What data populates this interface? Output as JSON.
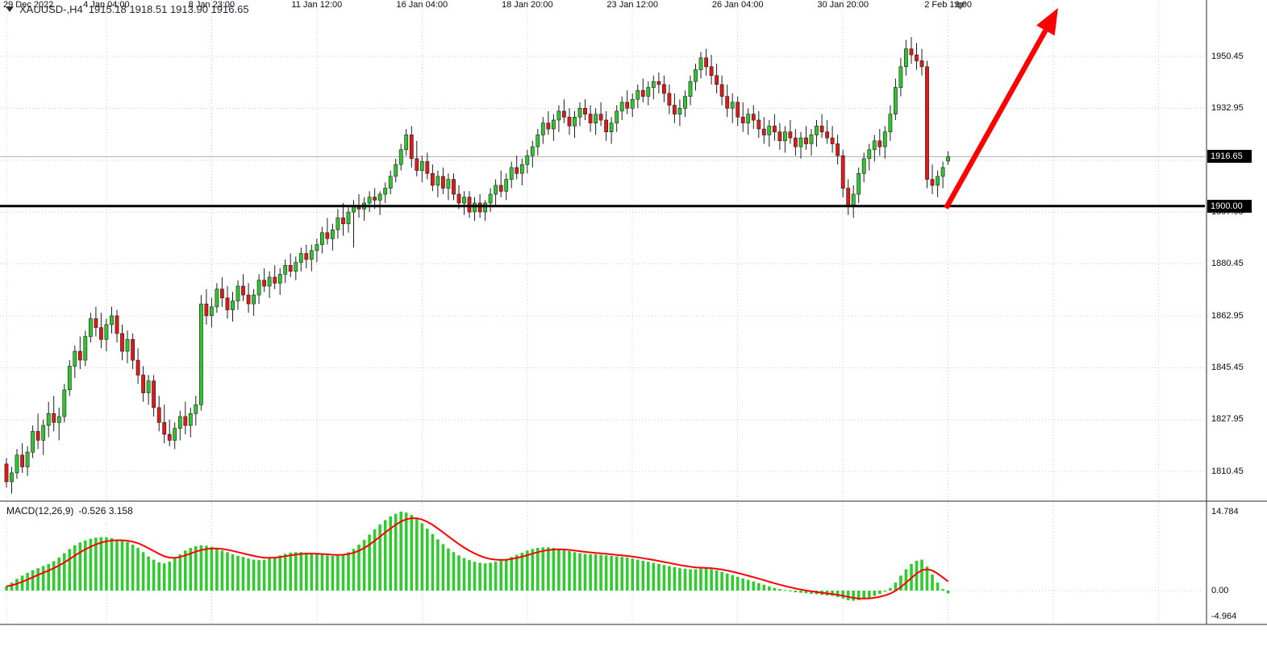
{
  "header": {
    "symbol_period": "XAUUSD-,H4",
    "ohlc_values": "1915.18 1918.51 1913.90 1916.65"
  },
  "indicator": {
    "name": "MACD(12,26,9)",
    "values": "-0.526 3.158"
  },
  "price_tags": {
    "current": "1916.65",
    "line": "1900.00"
  },
  "chart_data": {
    "type": "candlestick",
    "symbol": "XAUUSD-",
    "timeframe": "H4",
    "current_bar": {
      "open": 1915.18,
      "high": 1918.51,
      "low": 1913.9,
      "close": 1916.65
    },
    "current_price": 1916.65,
    "horizontal_line": 1900.0,
    "y_range": [
      1801.0,
      1969.5
    ],
    "grid": true,
    "y_tick_values": [
      1950.45,
      1932.95,
      1915.45,
      1897.95,
      1880.45,
      1862.95,
      1845.45,
      1827.95,
      1810.45
    ],
    "y_tick_labels": [
      "1950.45",
      "1932.95",
      "1915.45",
      "1897.95",
      "1880.45",
      "1862.95",
      "1845.45",
      "1827.95",
      "1810.45"
    ],
    "x_tick_indices": [
      0,
      19,
      39,
      59,
      79,
      99,
      119,
      139,
      159,
      179
    ],
    "x_tick_labels": [
      "29 Dec 2022",
      "4 Jan 04:00",
      "8 Jan 23:00",
      "11 Jan 12:00",
      "16 Jan 04:00",
      "18 Jan 20:00",
      "23 Jan 12:00",
      "26 Jan 04:00",
      "30 Jan 20:00",
      "2 Feb 12:00"
    ],
    "candles": [
      [
        1813,
        1815,
        1805,
        1807
      ],
      [
        1807,
        1812,
        1803,
        1810
      ],
      [
        1810,
        1818,
        1808,
        1816
      ],
      [
        1816,
        1820,
        1810,
        1812
      ],
      [
        1812,
        1819,
        1809,
        1817
      ],
      [
        1817,
        1826,
        1815,
        1824
      ],
      [
        1824,
        1830,
        1818,
        1821
      ],
      [
        1821,
        1828,
        1816,
        1826
      ],
      [
        1826,
        1834,
        1822,
        1830
      ],
      [
        1830,
        1836,
        1824,
        1827
      ],
      [
        1827,
        1832,
        1821,
        1829
      ],
      [
        1829,
        1840,
        1827,
        1838
      ],
      [
        1838,
        1848,
        1836,
        1846
      ],
      [
        1846,
        1853,
        1842,
        1851
      ],
      [
        1851,
        1856,
        1845,
        1848
      ],
      [
        1848,
        1858,
        1846,
        1856
      ],
      [
        1856,
        1864,
        1854,
        1862
      ],
      [
        1862,
        1866,
        1856,
        1859
      ],
      [
        1859,
        1864,
        1852,
        1855
      ],
      [
        1855,
        1862,
        1851,
        1860
      ],
      [
        1860,
        1866,
        1857,
        1863
      ],
      [
        1863,
        1865,
        1854,
        1857
      ],
      [
        1857,
        1860,
        1848,
        1851
      ],
      [
        1851,
        1858,
        1847,
        1855
      ],
      [
        1855,
        1857,
        1845,
        1848
      ],
      [
        1848,
        1852,
        1840,
        1843
      ],
      [
        1843,
        1846,
        1834,
        1837
      ],
      [
        1837,
        1843,
        1833,
        1841
      ],
      [
        1841,
        1843,
        1829,
        1832
      ],
      [
        1832,
        1836,
        1824,
        1827
      ],
      [
        1827,
        1833,
        1820,
        1823
      ],
      [
        1823,
        1828,
        1819,
        1821
      ],
      [
        1821,
        1827,
        1818,
        1825
      ],
      [
        1825,
        1831,
        1821,
        1829
      ],
      [
        1829,
        1834,
        1823,
        1826
      ],
      [
        1826,
        1832,
        1822,
        1830
      ],
      [
        1830,
        1836,
        1826,
        1833
      ],
      [
        1833,
        1870,
        1831,
        1867
      ],
      [
        1867,
        1872,
        1860,
        1863
      ],
      [
        1863,
        1869,
        1859,
        1866
      ],
      [
        1866,
        1874,
        1864,
        1872
      ],
      [
        1872,
        1876,
        1866,
        1869
      ],
      [
        1869,
        1873,
        1862,
        1865
      ],
      [
        1865,
        1871,
        1861,
        1868
      ],
      [
        1868,
        1875,
        1865,
        1873
      ],
      [
        1873,
        1877,
        1868,
        1870
      ],
      [
        1870,
        1874,
        1864,
        1867
      ],
      [
        1867,
        1872,
        1863,
        1870
      ],
      [
        1870,
        1877,
        1867,
        1875
      ],
      [
        1875,
        1879,
        1871,
        1873
      ],
      [
        1873,
        1878,
        1869,
        1876
      ],
      [
        1876,
        1880,
        1872,
        1874
      ],
      [
        1874,
        1879,
        1870,
        1877
      ],
      [
        1877,
        1882,
        1874,
        1880
      ],
      [
        1880,
        1884,
        1876,
        1878
      ],
      [
        1878,
        1883,
        1875,
        1881
      ],
      [
        1881,
        1886,
        1878,
        1884
      ],
      [
        1884,
        1887,
        1879,
        1882
      ],
      [
        1882,
        1887,
        1878,
        1885
      ],
      [
        1885,
        1889,
        1881,
        1887
      ],
      [
        1887,
        1893,
        1884,
        1891
      ],
      [
        1891,
        1896,
        1887,
        1889
      ],
      [
        1889,
        1894,
        1885,
        1892
      ],
      [
        1892,
        1899,
        1889,
        1896
      ],
      [
        1896,
        1901,
        1890,
        1894
      ],
      [
        1894,
        1900,
        1891,
        1898
      ],
      [
        1898,
        1902,
        1886,
        1900
      ],
      [
        1900,
        1904,
        1896,
        1899
      ],
      [
        1899,
        1903,
        1895,
        1901
      ],
      [
        1901,
        1905,
        1898,
        1903
      ],
      [
        1903,
        1906,
        1899,
        1902
      ],
      [
        1902,
        1905,
        1897,
        1904
      ],
      [
        1904,
        1908,
        1901,
        1906
      ],
      [
        1906,
        1912,
        1904,
        1910
      ],
      [
        1910,
        1916,
        1908,
        1914
      ],
      [
        1914,
        1921,
        1912,
        1919
      ],
      [
        1919,
        1926,
        1917,
        1924
      ],
      [
        1924,
        1927,
        1913,
        1916
      ],
      [
        1916,
        1922,
        1910,
        1912
      ],
      [
        1912,
        1917,
        1908,
        1915
      ],
      [
        1915,
        1918,
        1909,
        1911
      ],
      [
        1911,
        1914,
        1905,
        1907
      ],
      [
        1907,
        1912,
        1903,
        1910
      ],
      [
        1910,
        1913,
        1904,
        1906
      ],
      [
        1906,
        1911,
        1902,
        1909
      ],
      [
        1909,
        1911,
        1902,
        1904
      ],
      [
        1904,
        1907,
        1899,
        1901
      ],
      [
        1901,
        1905,
        1897,
        1903
      ],
      [
        1903,
        1905,
        1896,
        1898
      ],
      [
        1898,
        1903,
        1895,
        1901
      ],
      [
        1901,
        1904,
        1896,
        1898
      ],
      [
        1898,
        1902,
        1895,
        1901
      ],
      [
        1901,
        1906,
        1898,
        1904
      ],
      [
        1904,
        1909,
        1900,
        1907
      ],
      [
        1907,
        1912,
        1903,
        1905
      ],
      [
        1905,
        1911,
        1902,
        1909
      ],
      [
        1909,
        1915,
        1906,
        1913
      ],
      [
        1913,
        1917,
        1909,
        1911
      ],
      [
        1911,
        1916,
        1907,
        1914
      ],
      [
        1914,
        1919,
        1911,
        1917
      ],
      [
        1917,
        1922,
        1913,
        1920
      ],
      [
        1920,
        1926,
        1917,
        1924
      ],
      [
        1924,
        1930,
        1921,
        1928
      ],
      [
        1928,
        1932,
        1924,
        1926
      ],
      [
        1926,
        1931,
        1922,
        1929
      ],
      [
        1929,
        1934,
        1925,
        1932
      ],
      [
        1932,
        1936,
        1928,
        1930
      ],
      [
        1930,
        1933,
        1924,
        1927
      ],
      [
        1927,
        1932,
        1923,
        1930
      ],
      [
        1930,
        1935,
        1927,
        1933
      ],
      [
        1933,
        1936,
        1929,
        1931
      ],
      [
        1931,
        1934,
        1925,
        1928
      ],
      [
        1928,
        1933,
        1924,
        1931
      ],
      [
        1931,
        1935,
        1927,
        1929
      ],
      [
        1929,
        1932,
        1922,
        1925
      ],
      [
        1925,
        1930,
        1921,
        1928
      ],
      [
        1928,
        1934,
        1925,
        1932
      ],
      [
        1932,
        1937,
        1929,
        1935
      ],
      [
        1935,
        1939,
        1931,
        1933
      ],
      [
        1933,
        1938,
        1930,
        1936
      ],
      [
        1936,
        1941,
        1933,
        1939
      ],
      [
        1939,
        1943,
        1935,
        1937
      ],
      [
        1937,
        1942,
        1934,
        1940
      ],
      [
        1940,
        1944,
        1936,
        1942
      ],
      [
        1942,
        1945,
        1938,
        1941
      ],
      [
        1941,
        1944,
        1935,
        1938
      ],
      [
        1938,
        1941,
        1931,
        1934
      ],
      [
        1934,
        1938,
        1928,
        1931
      ],
      [
        1931,
        1936,
        1927,
        1933
      ],
      [
        1933,
        1939,
        1930,
        1937
      ],
      [
        1937,
        1944,
        1934,
        1942
      ],
      [
        1942,
        1948,
        1939,
        1946
      ],
      [
        1946,
        1952,
        1943,
        1950
      ],
      [
        1950,
        1953,
        1944,
        1947
      ],
      [
        1947,
        1951,
        1941,
        1944
      ],
      [
        1944,
        1948,
        1938,
        1941
      ],
      [
        1941,
        1944,
        1934,
        1937
      ],
      [
        1937,
        1941,
        1930,
        1933
      ],
      [
        1933,
        1938,
        1928,
        1935
      ],
      [
        1935,
        1937,
        1927,
        1930
      ],
      [
        1930,
        1935,
        1925,
        1928
      ],
      [
        1928,
        1933,
        1924,
        1931
      ],
      [
        1931,
        1934,
        1926,
        1929
      ],
      [
        1929,
        1932,
        1923,
        1926
      ],
      [
        1926,
        1930,
        1921,
        1924
      ],
      [
        1924,
        1929,
        1920,
        1927
      ],
      [
        1927,
        1931,
        1922,
        1925
      ],
      [
        1925,
        1928,
        1919,
        1922
      ],
      [
        1922,
        1927,
        1918,
        1925
      ],
      [
        1925,
        1929,
        1921,
        1923
      ],
      [
        1923,
        1926,
        1917,
        1920
      ],
      [
        1920,
        1925,
        1916,
        1923
      ],
      [
        1923,
        1927,
        1919,
        1921
      ],
      [
        1921,
        1926,
        1917,
        1924
      ],
      [
        1924,
        1929,
        1920,
        1927
      ],
      [
        1927,
        1931,
        1923,
        1925
      ],
      [
        1925,
        1929,
        1921,
        1923
      ],
      [
        1923,
        1927,
        1918,
        1921
      ],
      [
        1921,
        1924,
        1914,
        1917
      ],
      [
        1917,
        1919,
        1903,
        1906
      ],
      [
        1906,
        1909,
        1897,
        1900
      ],
      [
        1900,
        1907,
        1896,
        1904
      ],
      [
        1904,
        1913,
        1901,
        1911
      ],
      [
        1911,
        1918,
        1908,
        1916
      ],
      [
        1916,
        1921,
        1912,
        1919
      ],
      [
        1919,
        1924,
        1915,
        1922
      ],
      [
        1922,
        1926,
        1917,
        1920
      ],
      [
        1920,
        1927,
        1916,
        1925
      ],
      [
        1925,
        1934,
        1922,
        1931
      ],
      [
        1931,
        1943,
        1929,
        1940
      ],
      [
        1940,
        1950,
        1937,
        1947
      ],
      [
        1947,
        1956,
        1944,
        1953
      ],
      [
        1953,
        1957,
        1948,
        1951
      ],
      [
        1951,
        1955,
        1946,
        1949
      ],
      [
        1949,
        1953,
        1944,
        1947
      ],
      [
        1947,
        1949,
        1906,
        1909
      ],
      [
        1909,
        1914,
        1904,
        1907
      ],
      [
        1907,
        1912,
        1903,
        1910
      ],
      [
        1910,
        1915,
        1906,
        1913
      ],
      [
        1915.18,
        1918.51,
        1913.9,
        1916.65
      ]
    ],
    "macd": {
      "title": "MACD(12,26,9)",
      "current_main": -0.526,
      "current_signal": 3.158,
      "y_range": [
        -4.964,
        14.784
      ],
      "tick_values": [
        14.784,
        0,
        -4.964
      ],
      "tick_labels": [
        "14.784",
        "0.00",
        "-4.964"
      ],
      "histogram": [
        0.8,
        1.5,
        2.2,
        2.8,
        3.3,
        3.8,
        4.2,
        4.6,
        5.0,
        5.5,
        6.2,
        7.0,
        7.8,
        8.5,
        9.0,
        9.4,
        9.7,
        9.9,
        10.0,
        10.0,
        9.8,
        9.6,
        9.4,
        9.1,
        8.6,
        8.0,
        7.2,
        6.4,
        5.8,
        5.3,
        5.1,
        5.4,
        6.0,
        6.8,
        7.5,
        8.0,
        8.3,
        8.5,
        8.4,
        8.2,
        7.9,
        7.5,
        7.2,
        6.8,
        6.5,
        6.3,
        6.0,
        5.8,
        5.7,
        5.8,
        6.0,
        6.3,
        6.6,
        6.9,
        7.1,
        7.2,
        7.2,
        7.1,
        7.0,
        6.8,
        6.7,
        6.6,
        6.5,
        6.6,
        6.8,
        7.2,
        7.8,
        8.6,
        9.5,
        10.5,
        11.5,
        12.4,
        13.2,
        13.9,
        14.4,
        14.784,
        14.6,
        14.2,
        13.5,
        12.6,
        11.6,
        10.6,
        9.6,
        8.7,
        7.9,
        7.2,
        6.6,
        6.1,
        5.7,
        5.4,
        5.2,
        5.1,
        5.2,
        5.4,
        5.6,
        5.9,
        6.3,
        6.7,
        7.1,
        7.5,
        7.8,
        8.0,
        8.1,
        8.1,
        8.0,
        7.8,
        7.6,
        7.4,
        7.2,
        7.0,
        6.9,
        6.8,
        6.8,
        6.7,
        6.6,
        6.5,
        6.4,
        6.3,
        6.2,
        6.0,
        5.8,
        5.6,
        5.4,
        5.2,
        5.0,
        4.8,
        4.6,
        4.4,
        4.2,
        4.1,
        4.0,
        4.0,
        4.1,
        4.1,
        4.0,
        3.8,
        3.5,
        3.2,
        2.9,
        2.6,
        2.3,
        2.0,
        1.7,
        1.4,
        1.1,
        0.8,
        0.5,
        0.3,
        0.1,
        -0.1,
        -0.3,
        -0.4,
        -0.5,
        -0.6,
        -0.7,
        -0.8,
        -0.9,
        -1.0,
        -1.2,
        -1.5,
        -1.8,
        -1.9,
        -1.8,
        -1.6,
        -1.3,
        -1.0,
        -0.6,
        -0.2,
        0.5,
        1.5,
        2.8,
        4.0,
        5.0,
        5.6,
        5.8,
        4.5,
        3.0,
        1.5,
        0.3,
        -0.526
      ]
    },
    "colors": {
      "bull": "#30C530",
      "bear": "#DE1A1A",
      "histogram": "#2FCB2F",
      "signal": "#FF0000",
      "grid": "#CBCBCB",
      "line": "#000000",
      "arrow": "#FF0000",
      "tag_bg": "#000000"
    }
  },
  "annotations": {
    "trend_arrow": {
      "start_index": 178.6,
      "start_price": 1899.3,
      "end_index": 199.9,
      "end_price": 1966.8
    },
    "top_triangle": {
      "index": 181.3,
      "color": "#708090"
    }
  }
}
